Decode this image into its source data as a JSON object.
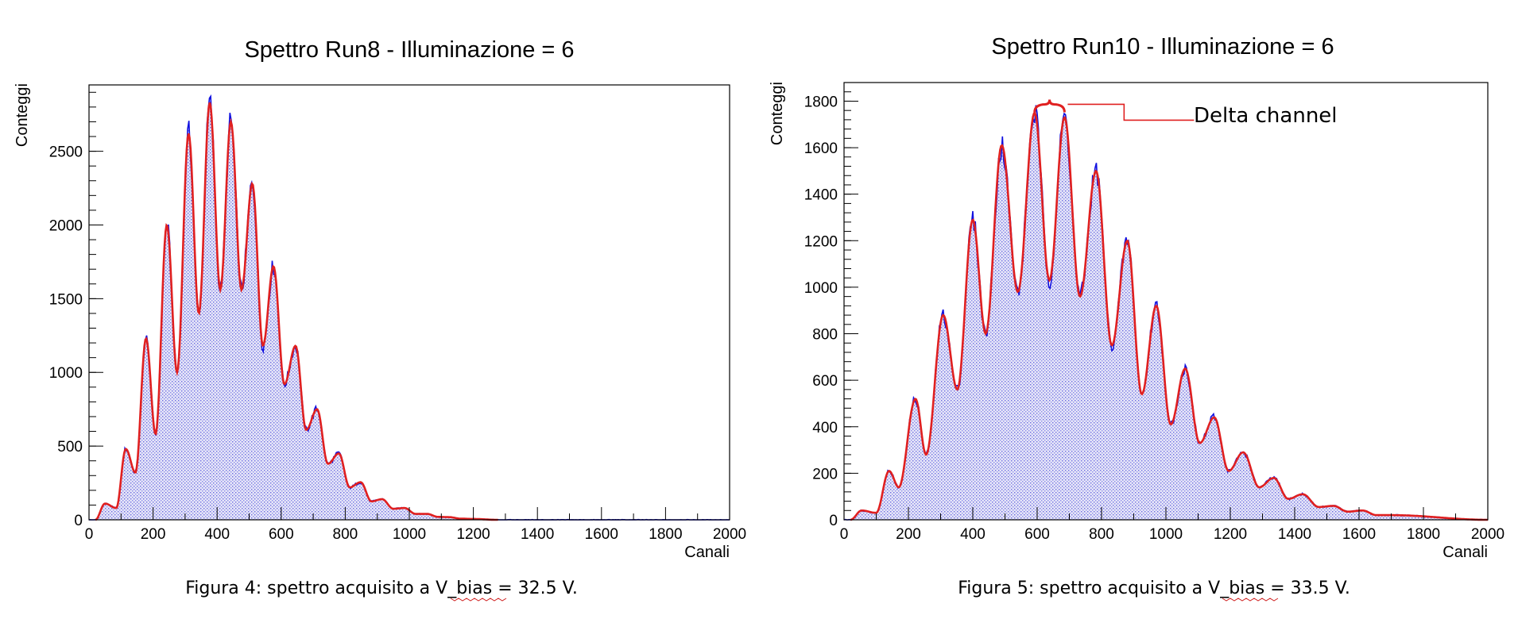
{
  "chart_data": [
    {
      "type": "area",
      "title": "Spettro Run8 - Illuminazione = 6",
      "xlabel": "Canali",
      "ylabel": "Conteggi",
      "xlim": [
        0,
        2000
      ],
      "ylim": [
        0,
        2950
      ],
      "xticks": [
        0,
        200,
        400,
        600,
        800,
        1000,
        1200,
        1400,
        1600,
        1800,
        2000
      ],
      "yticks": [
        0,
        500,
        1000,
        1500,
        2000,
        2500
      ],
      "caption": "Figura 4: spettro acquisito a V_bias = 32.5 V.",
      "colors": {
        "data": "#1010e0",
        "fill": "#c8c8f0",
        "fit": "#e02020"
      },
      "peaks": [
        {
          "x": 50,
          "y": 110
        },
        {
          "x": 115,
          "y": 480
        },
        {
          "x": 178,
          "y": 1230
        },
        {
          "x": 243,
          "y": 2000
        },
        {
          "x": 311,
          "y": 2620
        },
        {
          "x": 377,
          "y": 2830
        },
        {
          "x": 443,
          "y": 2700
        },
        {
          "x": 510,
          "y": 2280
        },
        {
          "x": 576,
          "y": 1720
        },
        {
          "x": 645,
          "y": 1180
        },
        {
          "x": 712,
          "y": 750
        },
        {
          "x": 780,
          "y": 450
        },
        {
          "x": 848,
          "y": 255
        },
        {
          "x": 915,
          "y": 140
        },
        {
          "x": 985,
          "y": 80
        },
        {
          "x": 1055,
          "y": 40
        },
        {
          "x": 1125,
          "y": 18
        },
        {
          "x": 1195,
          "y": 6
        }
      ],
      "valleys": [
        {
          "x": 85,
          "y": 80
        },
        {
          "x": 145,
          "y": 320
        },
        {
          "x": 208,
          "y": 580
        },
        {
          "x": 275,
          "y": 1000
        },
        {
          "x": 343,
          "y": 1400
        },
        {
          "x": 410,
          "y": 1560
        },
        {
          "x": 476,
          "y": 1560
        },
        {
          "x": 543,
          "y": 1180
        },
        {
          "x": 610,
          "y": 920
        },
        {
          "x": 678,
          "y": 610
        },
        {
          "x": 746,
          "y": 380
        },
        {
          "x": 814,
          "y": 220
        },
        {
          "x": 882,
          "y": 125
        },
        {
          "x": 950,
          "y": 75
        },
        {
          "x": 1020,
          "y": 40
        },
        {
          "x": 1090,
          "y": 20
        },
        {
          "x": 1160,
          "y": 8
        }
      ]
    },
    {
      "type": "area",
      "title": "Spettro Run10 - Illuminazione = 6",
      "xlabel": "Canali",
      "ylabel": "Conteggi",
      "xlim": [
        0,
        2000
      ],
      "ylim": [
        0,
        1880
      ],
      "xticks": [
        0,
        200,
        400,
        600,
        800,
        1000,
        1200,
        1400,
        1600,
        1800,
        2000
      ],
      "yticks": [
        0,
        200,
        400,
        600,
        800,
        1000,
        1200,
        1400,
        1600,
        1800
      ],
      "caption": "Figura 5: spettro acquisito a V_bias = 33.5 V.",
      "annotation": "Delta channel",
      "colors": {
        "data": "#1010e0",
        "fill": "#c8c8f0",
        "fit": "#e02020"
      },
      "peaks": [
        {
          "x": 55,
          "y": 40
        },
        {
          "x": 140,
          "y": 210
        },
        {
          "x": 222,
          "y": 520
        },
        {
          "x": 308,
          "y": 880
        },
        {
          "x": 400,
          "y": 1290
        },
        {
          "x": 490,
          "y": 1610
        },
        {
          "x": 592,
          "y": 1750
        },
        {
          "x": 685,
          "y": 1730
        },
        {
          "x": 783,
          "y": 1500
        },
        {
          "x": 880,
          "y": 1200
        },
        {
          "x": 970,
          "y": 920
        },
        {
          "x": 1060,
          "y": 650
        },
        {
          "x": 1150,
          "y": 440
        },
        {
          "x": 1240,
          "y": 290
        },
        {
          "x": 1335,
          "y": 180
        },
        {
          "x": 1425,
          "y": 110
        },
        {
          "x": 1520,
          "y": 60
        },
        {
          "x": 1610,
          "y": 40
        },
        {
          "x": 1700,
          "y": 20
        }
      ],
      "valleys": [
        {
          "x": 100,
          "y": 30
        },
        {
          "x": 170,
          "y": 140
        },
        {
          "x": 255,
          "y": 280
        },
        {
          "x": 352,
          "y": 560
        },
        {
          "x": 440,
          "y": 800
        },
        {
          "x": 540,
          "y": 980
        },
        {
          "x": 638,
          "y": 1030
        },
        {
          "x": 733,
          "y": 960
        },
        {
          "x": 832,
          "y": 750
        },
        {
          "x": 925,
          "y": 540
        },
        {
          "x": 1015,
          "y": 410
        },
        {
          "x": 1105,
          "y": 330
        },
        {
          "x": 1195,
          "y": 210
        },
        {
          "x": 1290,
          "y": 140
        },
        {
          "x": 1380,
          "y": 90
        },
        {
          "x": 1475,
          "y": 55
        },
        {
          "x": 1565,
          "y": 35
        },
        {
          "x": 1655,
          "y": 20
        }
      ]
    }
  ]
}
